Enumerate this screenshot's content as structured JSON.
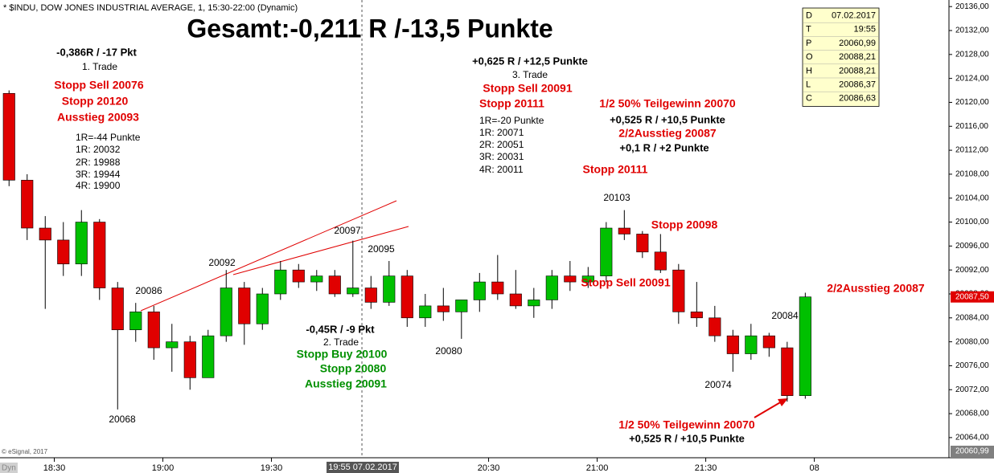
{
  "chart_data": {
    "type": "candlestick",
    "subtitle": "* $INDU, DOW JONES INDUSTRIAL AVERAGE, 1, 15:30-22:00 (Dynamic)",
    "title": "Gesamt:-0,211 R /-13,5 Punkte",
    "source": "© eSignal, 2017",
    "mode_label": "Dyn",
    "up_color": "#00c000",
    "down_color": "#e00000",
    "x": [
      1095,
      1100,
      1105,
      1110,
      1115,
      1120,
      1125,
      1130,
      1135,
      1140,
      1145,
      1150,
      1155,
      1160,
      1165,
      1170,
      1175,
      1180,
      1185,
      1190,
      1195,
      1200,
      1205,
      1210,
      1215,
      1220,
      1225,
      1230,
      1235,
      1240,
      1245,
      1250,
      1255,
      1260,
      1265,
      1270,
      1275,
      1280,
      1285,
      1290,
      1295,
      1300,
      1305,
      1310,
      1315
    ],
    "open": [
      20121.5,
      20107,
      20099,
      20097,
      20093,
      20100,
      20089,
      20082,
      20085,
      20079,
      20080,
      20074,
      20081,
      20089,
      20083,
      20088,
      20092,
      20090,
      20091,
      20088,
      20089,
      20086.6,
      20091,
      20084,
      20086,
      20085,
      20087,
      20090,
      20088,
      20086,
      20087,
      20091,
      20090,
      20091,
      20099,
      20098,
      20095,
      20092,
      20085,
      20084,
      20081,
      20078,
      20081,
      20079,
      20071
    ],
    "high": [
      20122,
      20108,
      20101,
      20100,
      20102,
      20100.5,
      20090,
      20086.5,
      20086,
      20083,
      20081,
      20082,
      20092,
      20090,
      20089,
      20093.5,
      20093,
      20092,
      20092,
      20096.9,
      20091,
      20093.5,
      20092,
      20088,
      20089,
      20087,
      20091.5,
      20094.5,
      20092,
      20089,
      20092,
      20093.5,
      20092.5,
      20100,
      20102,
      20098.5,
      20098,
      20093,
      20090,
      20086,
      20082,
      20083,
      20081.5,
      20080,
      20088.2
    ],
    "low": [
      20106,
      20097,
      20085.5,
      20091,
      20091,
      20087,
      20068.7,
      20080,
      20077,
      20075,
      20072,
      20074,
      20080,
      20079.5,
      20082,
      20087,
      20089,
      20088.5,
      20087.5,
      20087.5,
      20085.5,
      20086,
      20082.5,
      20082.5,
      20083.5,
      20080.5,
      20085,
      20087,
      20085.5,
      20084,
      20085.5,
      20088.5,
      20089,
      20090,
      20097,
      20094,
      20091.5,
      20083,
      20082.5,
      20080,
      20075,
      20077,
      20077.5,
      20070,
      20070.5
    ],
    "close": [
      20107,
      20099,
      20097,
      20093,
      20100,
      20089,
      20082,
      20085,
      20079,
      20080,
      20074,
      20081,
      20089,
      20083,
      20088,
      20092,
      20090,
      20091,
      20088,
      20089,
      20086.6,
      20091,
      20084,
      20086,
      20085,
      20087,
      20090,
      20088,
      20086,
      20087,
      20091,
      20090,
      20091,
      20099,
      20098,
      20095,
      20092,
      20085,
      20084,
      20081,
      20078,
      20081,
      20079,
      20071,
      20087.5
    ],
    "xlim": [
      1095,
      1357.2
    ],
    "xticks": [
      {
        "value": 1110,
        "label": "18:30"
      },
      {
        "value": 1140,
        "label": "19:00"
      },
      {
        "value": 1170,
        "label": "19:30"
      },
      {
        "value": 1230,
        "label": "20:30"
      },
      {
        "value": 1260,
        "label": "21:00"
      },
      {
        "value": 1290,
        "label": "21:30"
      },
      {
        "value": 1320,
        "label": "08"
      }
    ],
    "cursor": {
      "value": 1195,
      "label": "19:55 07.02.2017"
    },
    "ylim": [
      20060.9,
      20137.1
    ],
    "yticks": [
      {
        "value": 20064,
        "label": "20064,00"
      },
      {
        "value": 20068,
        "label": "20068,00"
      },
      {
        "value": 20072,
        "label": "20072,00"
      },
      {
        "value": 20076,
        "label": "20076,00"
      },
      {
        "value": 20080,
        "label": "20080,00"
      },
      {
        "value": 20084,
        "label": "20084,00"
      },
      {
        "value": 20088,
        "label": "20088,00"
      },
      {
        "value": 20092,
        "label": "20092,00"
      },
      {
        "value": 20096,
        "label": "20096,00"
      },
      {
        "value": 20100,
        "label": "20100,00"
      },
      {
        "value": 20104,
        "label": "20104,00"
      },
      {
        "value": 20108,
        "label": "20108,00"
      },
      {
        "value": 20112,
        "label": "20112,00"
      },
      {
        "value": 20116,
        "label": "20116,00"
      },
      {
        "value": 20120,
        "label": "20120,00"
      },
      {
        "value": 20124,
        "label": "20124,00"
      },
      {
        "value": 20128,
        "label": "20128,00"
      },
      {
        "value": 20132,
        "label": "20132,00"
      },
      {
        "value": 20136,
        "label": "20136,00"
      }
    ],
    "price_markers": [
      {
        "value": 20087.5,
        "label": "20087,50",
        "color": "#e00000"
      },
      {
        "value": 20060.99,
        "label": "20060,99",
        "color": "#808080"
      }
    ],
    "info_box": [
      [
        "D",
        "07.02.2017"
      ],
      [
        "T",
        "19:55"
      ],
      [
        "P",
        "20060,99"
      ],
      [
        "O",
        "20088,21"
      ],
      [
        "H",
        "20088,21"
      ],
      [
        "L",
        "20086,37"
      ],
      [
        "C",
        "20086,63"
      ]
    ],
    "annotations": [
      {
        "text": "-0,386R / -17 Pkt",
        "color": "#000000"
      },
      {
        "text": "1. Trade",
        "color": "#000000"
      },
      {
        "text": "Stopp Sell 20076",
        "color": "#e00000"
      },
      {
        "text": "Stopp 20120",
        "color": "#e00000"
      },
      {
        "text": "Ausstieg 20093",
        "color": "#e00000"
      },
      {
        "text": "1R=-44 Punkte",
        "color": "#000000"
      },
      {
        "text": "1R: 20032",
        "color": "#000000"
      },
      {
        "text": "2R: 19988",
        "color": "#000000"
      },
      {
        "text": "3R: 19944",
        "color": "#000000"
      },
      {
        "text": "4R: 19900",
        "color": "#000000"
      },
      {
        "text": "20086",
        "color": "#000000"
      },
      {
        "text": "20068",
        "color": "#000000"
      },
      {
        "text": "20092",
        "color": "#000000"
      },
      {
        "text": "20097",
        "color": "#000000"
      },
      {
        "text": "20095",
        "color": "#000000"
      },
      {
        "text": "20080",
        "color": "#000000"
      },
      {
        "text": "20103",
        "color": "#000000"
      },
      {
        "text": "20074",
        "color": "#000000"
      },
      {
        "text": "20084",
        "color": "#000000"
      },
      {
        "text": "-0,45R / -9 Pkt",
        "color": "#000000"
      },
      {
        "text": "2. Trade",
        "color": "#000000"
      },
      {
        "text": "Stopp Buy 20100",
        "color": "#009000"
      },
      {
        "text": "Stopp 20080",
        "color": "#009000"
      },
      {
        "text": "Ausstieg 20091",
        "color": "#009000"
      },
      {
        "text": "+0,625 R / +12,5 Punkte",
        "color": "#000000"
      },
      {
        "text": "3. Trade",
        "color": "#000000"
      },
      {
        "text": "Stopp Sell 20091",
        "color": "#e00000"
      },
      {
        "text": "Stopp 20111",
        "color": "#e00000"
      },
      {
        "text": "1R=-20 Punkte",
        "color": "#000000"
      },
      {
        "text": "1R: 20071",
        "color": "#000000"
      },
      {
        "text": "2R: 20051",
        "color": "#000000"
      },
      {
        "text": "3R: 20031",
        "color": "#000000"
      },
      {
        "text": "4R: 20011",
        "color": "#000000"
      },
      {
        "text": "1/2 50% Teilgewinn 20070",
        "color": "#e00000"
      },
      {
        "text": "+0,525 R / +10,5 Punkte",
        "color": "#000000"
      },
      {
        "text": "2/2Ausstieg 20087",
        "color": "#e00000"
      },
      {
        "text": "+0,1 R / +2 Punkte",
        "color": "#000000"
      },
      {
        "text": "Stopp 20111",
        "color": "#e00000"
      },
      {
        "text": "Stopp 20098",
        "color": "#e00000"
      },
      {
        "text": "Stopp Sell 20091",
        "color": "#e00000"
      },
      {
        "text": "2/2Ausstieg 20087",
        "color": "#e00000"
      },
      {
        "text": "1/2 50% Teilgewinn 20070",
        "color": "#e00000"
      },
      {
        "text": "+0,525 R / +10,5 Punkte",
        "color": "#000000"
      }
    ]
  }
}
